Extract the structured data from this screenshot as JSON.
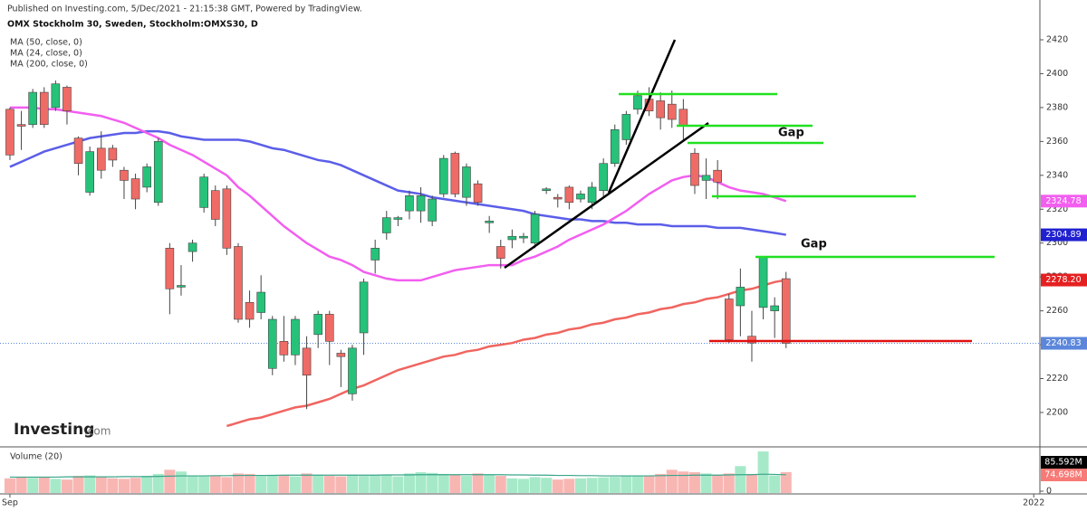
{
  "header": {
    "published": "Published on Investing.com, 5/Dec/2021 - 21:15:38 GMT, Powered by TradingView."
  },
  "logo": {
    "brand": "Investing",
    "suffix": ".com"
  },
  "chart_data": {
    "type": "candlestick",
    "title": "OMX Stockholm 30, Sweden, Stockholm:OMXS30, D",
    "up_color": "#26c27a",
    "down_color": "#ef6b66",
    "open": [
      2379,
      2370,
      2370,
      2389,
      2380,
      2392,
      2362,
      2330,
      2356,
      2356,
      2343,
      2338,
      2333,
      2324,
      2297,
      2274,
      2295,
      2321,
      2331,
      2332,
      2298,
      2265,
      2259,
      2226,
      2242,
      2234,
      2238,
      2246,
      2258,
      2235,
      2211,
      2247,
      2290,
      2306,
      2314,
      2319,
      2319,
      2313,
      2329,
      2353,
      2327,
      2335,
      2312,
      2298,
      2302,
      2303,
      2300,
      2331,
      2327,
      2333,
      2326,
      2324,
      2331,
      2347,
      2361,
      2379,
      2385,
      2384,
      2382,
      2379,
      2353,
      2337,
      2343,
      2267,
      2263,
      2245,
      2262,
      2260,
      2279
    ],
    "high": [
      2380,
      2378,
      2391,
      2392,
      2396,
      2393,
      2363,
      2357,
      2366,
      2358,
      2345,
      2341,
      2347,
      2362,
      2300,
      2287,
      2302,
      2341,
      2334,
      2334,
      2300,
      2272,
      2281,
      2257,
      2257,
      2257,
      2245,
      2260,
      2260,
      2237,
      2240,
      2279,
      2302,
      2319,
      2316,
      2331,
      2333,
      2328,
      2352,
      2354,
      2347,
      2337,
      2316,
      2302,
      2308,
      2306,
      2319,
      2333,
      2329,
      2334,
      2331,
      2336,
      2350,
      2370,
      2378,
      2390,
      2392,
      2389,
      2390,
      2385,
      2356,
      2350,
      2349,
      2270,
      2285,
      2260,
      2292,
      2268,
      2283
    ],
    "low": [
      2349,
      2355,
      2368,
      2368,
      2378,
      2370,
      2340,
      2328,
      2338,
      2345,
      2326,
      2320,
      2330,
      2322,
      2258,
      2269,
      2289,
      2318,
      2310,
      2293,
      2253,
      2250,
      2255,
      2222,
      2230,
      2228,
      2202,
      2238,
      2228,
      2215,
      2207,
      2234,
      2282,
      2302,
      2310,
      2314,
      2312,
      2310,
      2327,
      2327,
      2322,
      2322,
      2306,
      2285,
      2297,
      2300,
      2297,
      2329,
      2321,
      2320,
      2324,
      2320,
      2327,
      2345,
      2358,
      2376,
      2375,
      2367,
      2368,
      2360,
      2329,
      2326,
      2326,
      2241,
      2245,
      2230,
      2255,
      2244,
      2238
    ],
    "close": [
      2352,
      2369,
      2389,
      2370,
      2394,
      2378,
      2347,
      2354,
      2343,
      2349,
      2337,
      2326,
      2345,
      2360,
      2273,
      2275,
      2300,
      2339,
      2314,
      2297,
      2255,
      2255,
      2271,
      2255,
      2234,
      2255,
      2222,
      2258,
      2242,
      2233,
      2238,
      2277,
      2297,
      2315,
      2315,
      2328,
      2328,
      2326,
      2350,
      2329,
      2345,
      2324,
      2313,
      2291,
      2304,
      2304,
      2317,
      2332,
      2326,
      2324,
      2329,
      2333,
      2347,
      2367,
      2376,
      2387,
      2378,
      2374,
      2373,
      2369,
      2334,
      2340,
      2336,
      2243,
      2274,
      2241,
      2292,
      2263,
      2240.83
    ],
    "series": [
      {
        "name": "MA (50, close, 0)",
        "color": "#5b5ee8",
        "values": [
          2345,
          2348,
          2351,
          2354,
          2356,
          2358,
          2360,
          2362,
          2363,
          2364,
          2365,
          2365,
          2366,
          2366,
          2365,
          2363,
          2362,
          2361,
          2361,
          2361,
          2361,
          2360,
          2358,
          2356,
          2355,
          2353,
          2351,
          2349,
          2348,
          2346,
          2343,
          2340,
          2337,
          2334,
          2331,
          2330,
          2329,
          2327,
          2326,
          2325,
          2324,
          2323,
          2322,
          2321,
          2320,
          2319,
          2317,
          2316,
          2315,
          2314,
          2314,
          2313,
          2313,
          2312,
          2312,
          2311,
          2311,
          2311,
          2310,
          2310,
          2310,
          2310,
          2309,
          2309,
          2309,
          2308,
          2307,
          2306,
          2304.89
        ]
      },
      {
        "name": "MA (24, close, 0)",
        "color": "#f25ef0",
        "values": [
          2380,
          2380,
          2380,
          2379,
          2379,
          2378,
          2377,
          2376,
          2375,
          2373,
          2371,
          2368,
          2365,
          2362,
          2358,
          2355,
          2352,
          2348,
          2344,
          2340,
          2333,
          2328,
          2322,
          2316,
          2310,
          2305,
          2300,
          2296,
          2292,
          2290,
          2287,
          2283,
          2281,
          2279,
          2278,
          2278,
          2278,
          2280,
          2282,
          2284,
          2285,
          2286,
          2287,
          2287,
          2287,
          2290,
          2292,
          2295,
          2298,
          2302,
          2305,
          2308,
          2311,
          2315,
          2319,
          2324,
          2329,
          2333,
          2337,
          2339,
          2340,
          2339,
          2336,
          2333,
          2331,
          2330,
          2329,
          2327,
          2324.78
        ]
      },
      {
        "name": "MA (200, close, 0)",
        "color": "#f06560",
        "values": [
          null,
          null,
          null,
          null,
          null,
          null,
          null,
          null,
          null,
          null,
          null,
          null,
          null,
          null,
          null,
          null,
          null,
          null,
          null,
          2192,
          2194,
          2196,
          2197,
          2199,
          2201,
          2203,
          2204,
          2206,
          2208,
          2211,
          2214,
          2216,
          2219,
          2222,
          2225,
          2227,
          2229,
          2231,
          2233,
          2234,
          2236,
          2237,
          2239,
          2240,
          2241,
          2243,
          2244,
          2246,
          2247,
          2249,
          2250,
          2252,
          2253,
          2255,
          2256,
          2258,
          2259,
          2261,
          2262,
          2264,
          2265,
          2267,
          2268,
          2270,
          2272,
          2273,
          2275,
          2277,
          2278.2
        ]
      }
    ],
    "ylim": [
      2179.7,
      2443.5
    ],
    "yticks": [
      2200,
      2220,
      2240,
      2260,
      2280,
      2300,
      2320,
      2340,
      2360,
      2380,
      2400,
      2420
    ],
    "xlim": [
      -0.87,
      90.24
    ],
    "xticks": [
      {
        "value": 0,
        "label": "Sep"
      },
      {
        "value": 89.7,
        "label": "2022"
      }
    ],
    "axis_badges": [
      {
        "value": 2324.78,
        "label": "2324.78",
        "color": "#f25ef0"
      },
      {
        "value": 2304.89,
        "label": "2304.89",
        "color": "#2020d0"
      },
      {
        "value": 2278.2,
        "label": "2278.20",
        "color": "#e52020"
      },
      {
        "value": 2240.83,
        "label": "2240.83",
        "color": "#5b86db"
      }
    ],
    "annotations": [
      "Gap",
      "Gap"
    ],
    "volume": {
      "title": "Volume (20)",
      "up_color": "#a6e9c9",
      "down_color": "#f8b6b3",
      "ma_color": "#3aa58a",
      "values": [
        60,
        65,
        62,
        64,
        58,
        55,
        70,
        72,
        65,
        60,
        58,
        62,
        70,
        78,
        95,
        88,
        70,
        68,
        72,
        65,
        80,
        78,
        70,
        75,
        72,
        68,
        80,
        72,
        70,
        68,
        75,
        70,
        72,
        75,
        68,
        80,
        85,
        82,
        78,
        76,
        70,
        80,
        75,
        70,
        60,
        58,
        65,
        62,
        55,
        58,
        60,
        62,
        64,
        66,
        70,
        72,
        70,
        78,
        95,
        88,
        85,
        80,
        75,
        80,
        110,
        78,
        170,
        72,
        85.592
      ],
      "ma_values": [
        65,
        65,
        65,
        65,
        65,
        66,
        66,
        66,
        66,
        66,
        67,
        67,
        67,
        68,
        69,
        70,
        70,
        70,
        71,
        71,
        72,
        72,
        72,
        72,
        73,
        73,
        73,
        73,
        73,
        73,
        73,
        73,
        73,
        74,
        74,
        74,
        75,
        75,
        75,
        75,
        75,
        75,
        75,
        75,
        74,
        74,
        73,
        73,
        72,
        72,
        71,
        71,
        70,
        70,
        70,
        70,
        70,
        71,
        72,
        72,
        73,
        73,
        73,
        74,
        75,
        75,
        77,
        76,
        74.698
      ],
      "ylim": [
        0,
        185
      ],
      "yticks": [
        0
      ],
      "badges": [
        {
          "value": 85.592,
          "label": "85.592M",
          "color": "#000000"
        },
        {
          "value": 74.698,
          "label": "74.698M",
          "color": "#f77a76"
        }
      ]
    }
  }
}
